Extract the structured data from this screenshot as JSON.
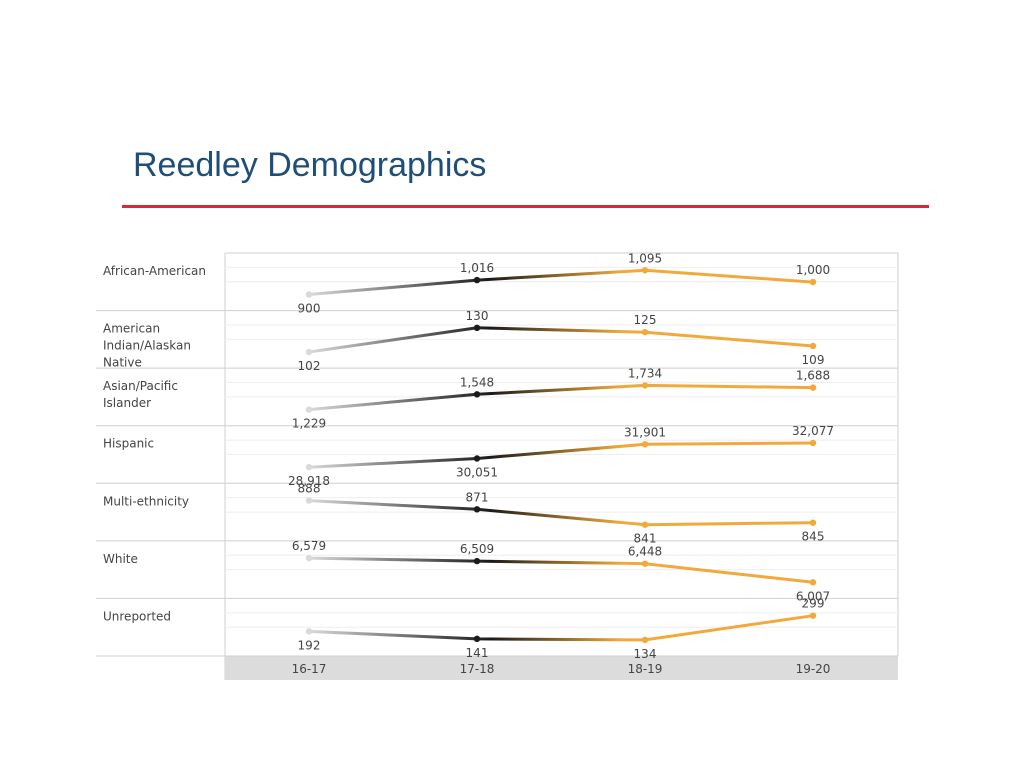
{
  "title": "Reedley Demographics",
  "colors": {
    "title": "#1f4e79",
    "rule": "#d42a3c",
    "start": "#d9d9d9",
    "mid": "#1a1a1a",
    "end": "#f2a93b",
    "axis_band": "#dcdcdc",
    "grid": "#eeeeee",
    "border": "#cfcfcf",
    "label": "#444444"
  },
  "chart_data": {
    "type": "line",
    "categories": [
      "16-17",
      "17-18",
      "18-19",
      "19-20"
    ],
    "rows": [
      {
        "label": "African-American",
        "values": [
          900,
          1016,
          1095,
          1000
        ],
        "labels": [
          "900",
          "1,016",
          "1,095",
          "1,000"
        ]
      },
      {
        "label": "American Indian/Alaskan Native",
        "values": [
          102,
          130,
          125,
          109
        ],
        "labels": [
          "102",
          "130",
          "125",
          "109"
        ]
      },
      {
        "label": "Asian/Pacific Islander",
        "values": [
          1229,
          1548,
          1734,
          1688
        ],
        "labels": [
          "1,229",
          "1,548",
          "1,734",
          "1,688"
        ]
      },
      {
        "label": "Hispanic",
        "values": [
          28918,
          30051,
          31901,
          32077
        ],
        "labels": [
          "28,918",
          "30,051",
          "31,901",
          "32,077"
        ]
      },
      {
        "label": "Multi-ethnicity",
        "values": [
          888,
          871,
          841,
          845
        ],
        "labels": [
          "888",
          "871",
          "841",
          "845"
        ]
      },
      {
        "label": "White",
        "values": [
          6579,
          6509,
          6448,
          6007
        ],
        "labels": [
          "6,579",
          "6,509",
          "6,448",
          "6,007"
        ]
      },
      {
        "label": "Unreported",
        "values": [
          192,
          141,
          134,
          299
        ],
        "labels": [
          "192",
          "141",
          "134",
          "299"
        ]
      }
    ]
  }
}
